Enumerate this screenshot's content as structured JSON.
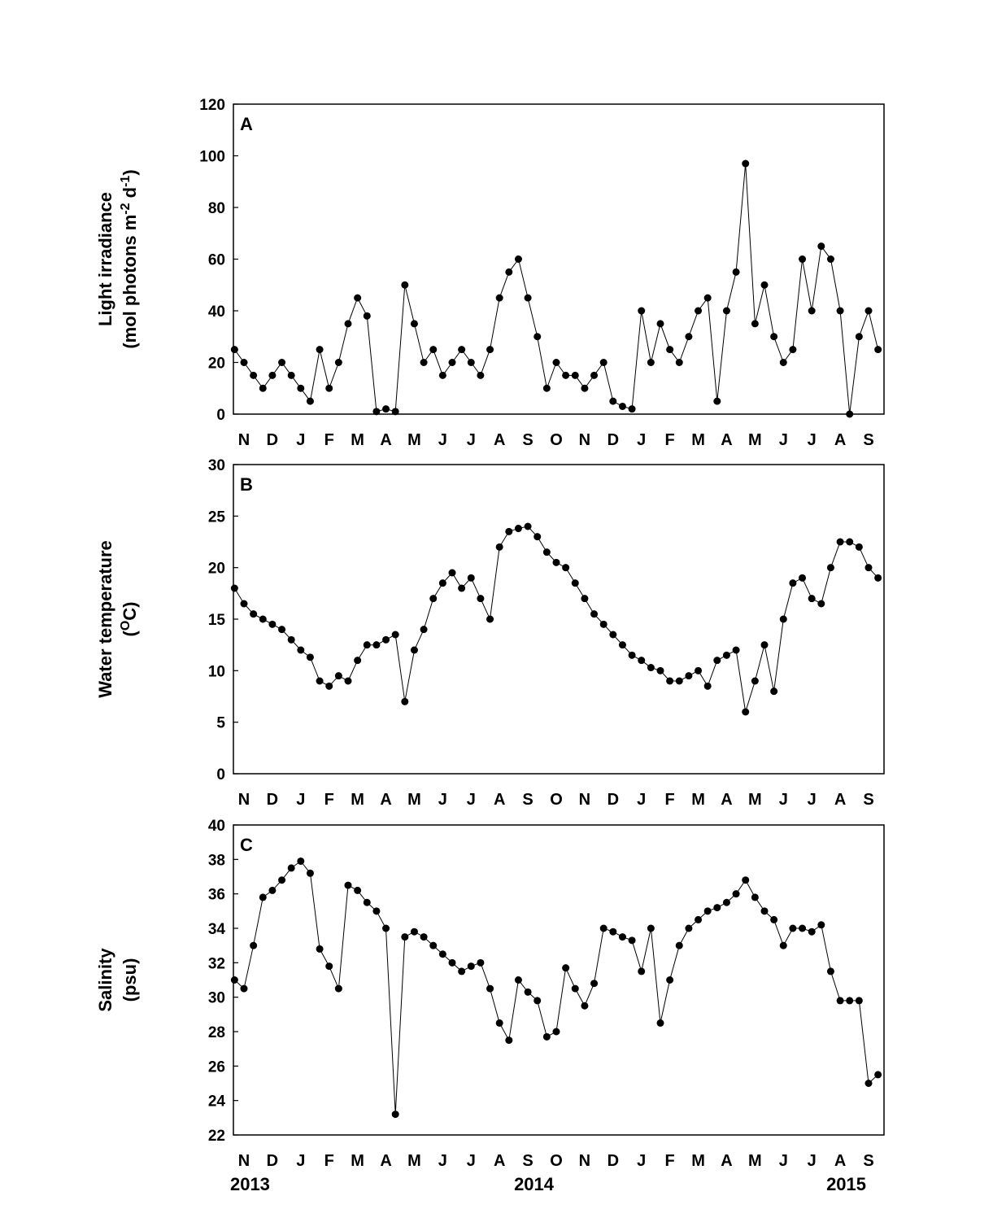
{
  "chart_data": [
    {
      "type": "line",
      "label": "A",
      "y_label": "Light irradiance",
      "y_unit": [
        "(mol photons m",
        "-2",
        " d",
        "-1",
        ")"
      ],
      "color": "#000000",
      "ylim": [
        0,
        120
      ],
      "yticks": [
        0,
        20,
        40,
        60,
        80,
        100,
        120
      ],
      "xticks": [
        {
          "value": "2013-11",
          "label": "N"
        },
        {
          "value": "2013-12",
          "label": "D"
        },
        {
          "value": "2014-01",
          "label": "J"
        },
        {
          "value": "2014-02",
          "label": "F"
        },
        {
          "value": "2014-03",
          "label": "M"
        },
        {
          "value": "2014-04",
          "label": "A"
        },
        {
          "value": "2014-05",
          "label": "M"
        },
        {
          "value": "2014-06",
          "label": "J"
        },
        {
          "value": "2014-07",
          "label": "J"
        },
        {
          "value": "2014-08",
          "label": "A"
        },
        {
          "value": "2014-09",
          "label": "S"
        },
        {
          "value": "2014-10",
          "label": "O"
        },
        {
          "value": "2014-11",
          "label": "N"
        },
        {
          "value": "2014-12",
          "label": "D"
        },
        {
          "value": "2015-01",
          "label": "J"
        },
        {
          "value": "2015-02",
          "label": "F"
        },
        {
          "value": "2015-03",
          "label": "M"
        },
        {
          "value": "2015-04",
          "label": "A"
        },
        {
          "value": "2015-05",
          "label": "M"
        },
        {
          "value": "2015-06",
          "label": "J"
        },
        {
          "value": "2015-07",
          "label": "J"
        },
        {
          "value": "2015-08",
          "label": "A"
        },
        {
          "value": "2015-09",
          "label": "S"
        }
      ],
      "x": [
        "2013-11",
        "2013-11",
        "2013-11",
        "2013-12",
        "2013-12",
        "2013-12",
        "2014-01",
        "2014-01",
        "2014-01",
        "2014-02",
        "2014-02",
        "2014-02",
        "2014-03",
        "2014-03",
        "2014-03",
        "2014-04",
        "2014-04",
        "2014-04",
        "2014-05",
        "2014-05",
        "2014-05",
        "2014-06",
        "2014-06",
        "2014-06",
        "2014-07",
        "2014-07",
        "2014-07",
        "2014-08",
        "2014-08",
        "2014-08",
        "2014-09",
        "2014-09",
        "2014-09",
        "2014-10",
        "2014-10",
        "2014-10",
        "2014-11",
        "2014-11",
        "2014-11",
        "2014-12",
        "2014-12",
        "2014-12",
        "2015-01",
        "2015-01",
        "2015-01",
        "2015-02",
        "2015-02",
        "2015-02",
        "2015-03",
        "2015-03",
        "2015-03",
        "2015-04",
        "2015-04",
        "2015-04",
        "2015-05",
        "2015-05",
        "2015-05",
        "2015-06",
        "2015-06",
        "2015-06",
        "2015-07",
        "2015-07",
        "2015-07",
        "2015-08",
        "2015-08",
        "2015-08",
        "2015-09",
        "2015-09",
        "2015-09"
      ],
      "values": [
        25,
        20,
        15,
        10,
        15,
        20,
        15,
        10,
        5,
        25,
        10,
        20,
        35,
        45,
        38,
        1,
        2,
        1,
        50,
        35,
        20,
        25,
        15,
        20,
        25,
        20,
        15,
        25,
        45,
        55,
        60,
        45,
        30,
        10,
        20,
        15,
        15,
        10,
        15,
        20,
        5,
        3,
        2,
        40,
        20,
        35,
        25,
        20,
        30,
        40,
        45,
        5,
        40,
        55,
        97,
        35,
        50,
        30,
        20,
        25,
        60,
        40,
        65,
        60,
        40,
        0,
        30,
        40,
        25
      ]
    },
    {
      "type": "line",
      "label": "B",
      "y_label": "Water temperature",
      "y_unit": [
        "(",
        "O",
        "C)"
      ],
      "color": "#000000",
      "ylim": [
        0,
        30
      ],
      "yticks": [
        0,
        5,
        10,
        15,
        20,
        25,
        30
      ],
      "xticks": [
        {
          "value": "2013-11",
          "label": "N"
        },
        {
          "value": "2013-12",
          "label": "D"
        },
        {
          "value": "2014-01",
          "label": "J"
        },
        {
          "value": "2014-02",
          "label": "F"
        },
        {
          "value": "2014-03",
          "label": "M"
        },
        {
          "value": "2014-04",
          "label": "A"
        },
        {
          "value": "2014-05",
          "label": "M"
        },
        {
          "value": "2014-06",
          "label": "J"
        },
        {
          "value": "2014-07",
          "label": "J"
        },
        {
          "value": "2014-08",
          "label": "A"
        },
        {
          "value": "2014-09",
          "label": "S"
        },
        {
          "value": "2014-10",
          "label": "O"
        },
        {
          "value": "2014-11",
          "label": "N"
        },
        {
          "value": "2014-12",
          "label": "D"
        },
        {
          "value": "2015-01",
          "label": "J"
        },
        {
          "value": "2015-02",
          "label": "F"
        },
        {
          "value": "2015-03",
          "label": "M"
        },
        {
          "value": "2015-04",
          "label": "A"
        },
        {
          "value": "2015-05",
          "label": "M"
        },
        {
          "value": "2015-06",
          "label": "J"
        },
        {
          "value": "2015-07",
          "label": "J"
        },
        {
          "value": "2015-08",
          "label": "A"
        },
        {
          "value": "2015-09",
          "label": "S"
        }
      ],
      "x": [
        "2013-11",
        "2013-11",
        "2013-11",
        "2013-12",
        "2013-12",
        "2013-12",
        "2014-01",
        "2014-01",
        "2014-01",
        "2014-02",
        "2014-02",
        "2014-02",
        "2014-03",
        "2014-03",
        "2014-03",
        "2014-04",
        "2014-04",
        "2014-04",
        "2014-05",
        "2014-05",
        "2014-05",
        "2014-06",
        "2014-06",
        "2014-06",
        "2014-07",
        "2014-07",
        "2014-07",
        "2014-08",
        "2014-08",
        "2014-08",
        "2014-09",
        "2014-09",
        "2014-09",
        "2014-10",
        "2014-10",
        "2014-10",
        "2014-11",
        "2014-11",
        "2014-11",
        "2014-12",
        "2014-12",
        "2014-12",
        "2015-01",
        "2015-01",
        "2015-01",
        "2015-02",
        "2015-02",
        "2015-02",
        "2015-03",
        "2015-03",
        "2015-03",
        "2015-04",
        "2015-04",
        "2015-04",
        "2015-05",
        "2015-05",
        "2015-05",
        "2015-06",
        "2015-06",
        "2015-06",
        "2015-07",
        "2015-07",
        "2015-07",
        "2015-08",
        "2015-08",
        "2015-08",
        "2015-09",
        "2015-09",
        "2015-09"
      ],
      "values": [
        18,
        16.5,
        15.5,
        15,
        14.5,
        14,
        13,
        12,
        11.3,
        9,
        8.5,
        9.5,
        9,
        11,
        12.5,
        12.5,
        13,
        13.5,
        7,
        12,
        14,
        17,
        18.5,
        19.5,
        18,
        19,
        17,
        15,
        22,
        23.5,
        23.8,
        24,
        23,
        21.5,
        20.5,
        20,
        18.5,
        17,
        15.5,
        14.5,
        13.5,
        12.5,
        11.5,
        11,
        10.3,
        10,
        9,
        9,
        9.5,
        10,
        8.5,
        11,
        11.5,
        12,
        6,
        9,
        12.5,
        8,
        15,
        18.5,
        19,
        17,
        16.5,
        20,
        22.5,
        22.5,
        22,
        20,
        19
      ]
    },
    {
      "type": "line",
      "label": "C",
      "y_label": "Salinity",
      "y_unit": [
        "(psu)"
      ],
      "color": "#000000",
      "ylim": [
        22,
        40
      ],
      "yticks": [
        22,
        24,
        26,
        28,
        30,
        32,
        34,
        36,
        38,
        40
      ],
      "xticks": [
        {
          "value": "2013-11",
          "label": "N"
        },
        {
          "value": "2013-12",
          "label": "D"
        },
        {
          "value": "2014-01",
          "label": "J"
        },
        {
          "value": "2014-02",
          "label": "F"
        },
        {
          "value": "2014-03",
          "label": "M"
        },
        {
          "value": "2014-04",
          "label": "A"
        },
        {
          "value": "2014-05",
          "label": "M"
        },
        {
          "value": "2014-06",
          "label": "J"
        },
        {
          "value": "2014-07",
          "label": "J"
        },
        {
          "value": "2014-08",
          "label": "A"
        },
        {
          "value": "2014-09",
          "label": "S"
        },
        {
          "value": "2014-10",
          "label": "O"
        },
        {
          "value": "2014-11",
          "label": "N"
        },
        {
          "value": "2014-12",
          "label": "D"
        },
        {
          "value": "2015-01",
          "label": "J"
        },
        {
          "value": "2015-02",
          "label": "F"
        },
        {
          "value": "2015-03",
          "label": "M"
        },
        {
          "value": "2015-04",
          "label": "A"
        },
        {
          "value": "2015-05",
          "label": "M"
        },
        {
          "value": "2015-06",
          "label": "J"
        },
        {
          "value": "2015-07",
          "label": "J"
        },
        {
          "value": "2015-08",
          "label": "A"
        },
        {
          "value": "2015-09",
          "label": "S"
        }
      ],
      "year_labels": [
        {
          "value": "2013-11",
          "label": "2013"
        },
        {
          "value": "2014-09",
          "label": "2014"
        },
        {
          "value": "2015-08",
          "label": "2015"
        }
      ],
      "x": [
        "2013-11",
        "2013-11",
        "2013-11",
        "2013-12",
        "2013-12",
        "2013-12",
        "2014-01",
        "2014-01",
        "2014-01",
        "2014-02",
        "2014-02",
        "2014-02",
        "2014-03",
        "2014-03",
        "2014-03",
        "2014-04",
        "2014-04",
        "2014-04",
        "2014-05",
        "2014-05",
        "2014-05",
        "2014-06",
        "2014-06",
        "2014-06",
        "2014-07",
        "2014-07",
        "2014-07",
        "2014-08",
        "2014-08",
        "2014-08",
        "2014-09",
        "2014-09",
        "2014-09",
        "2014-10",
        "2014-10",
        "2014-10",
        "2014-11",
        "2014-11",
        "2014-11",
        "2014-12",
        "2014-12",
        "2014-12",
        "2015-01",
        "2015-01",
        "2015-01",
        "2015-02",
        "2015-02",
        "2015-02",
        "2015-03",
        "2015-03",
        "2015-03",
        "2015-04",
        "2015-04",
        "2015-04",
        "2015-05",
        "2015-05",
        "2015-05",
        "2015-06",
        "2015-06",
        "2015-06",
        "2015-07",
        "2015-07",
        "2015-07",
        "2015-08",
        "2015-08",
        "2015-08",
        "2015-09",
        "2015-09",
        "2015-09"
      ],
      "values": [
        31,
        30.5,
        33,
        35.8,
        36.2,
        36.8,
        37.5,
        37.9,
        37.2,
        32.8,
        31.8,
        30.5,
        36.5,
        36.2,
        35.5,
        35,
        34,
        23.2,
        33.5,
        33.8,
        33.5,
        33,
        32.5,
        32,
        31.5,
        31.8,
        32,
        30.5,
        28.5,
        27.5,
        31,
        30.3,
        29.8,
        27.7,
        28,
        31.7,
        30.5,
        29.5,
        30.8,
        34,
        33.8,
        33.5,
        33.3,
        31.5,
        34,
        28.5,
        31,
        33,
        34,
        34.5,
        35,
        35.2,
        35.5,
        36,
        36.8,
        35.8,
        35,
        34.5,
        33,
        34,
        34,
        33.8,
        34.2,
        31.5,
        29.8,
        29.8,
        29.8,
        25,
        25.5
      ]
    }
  ]
}
